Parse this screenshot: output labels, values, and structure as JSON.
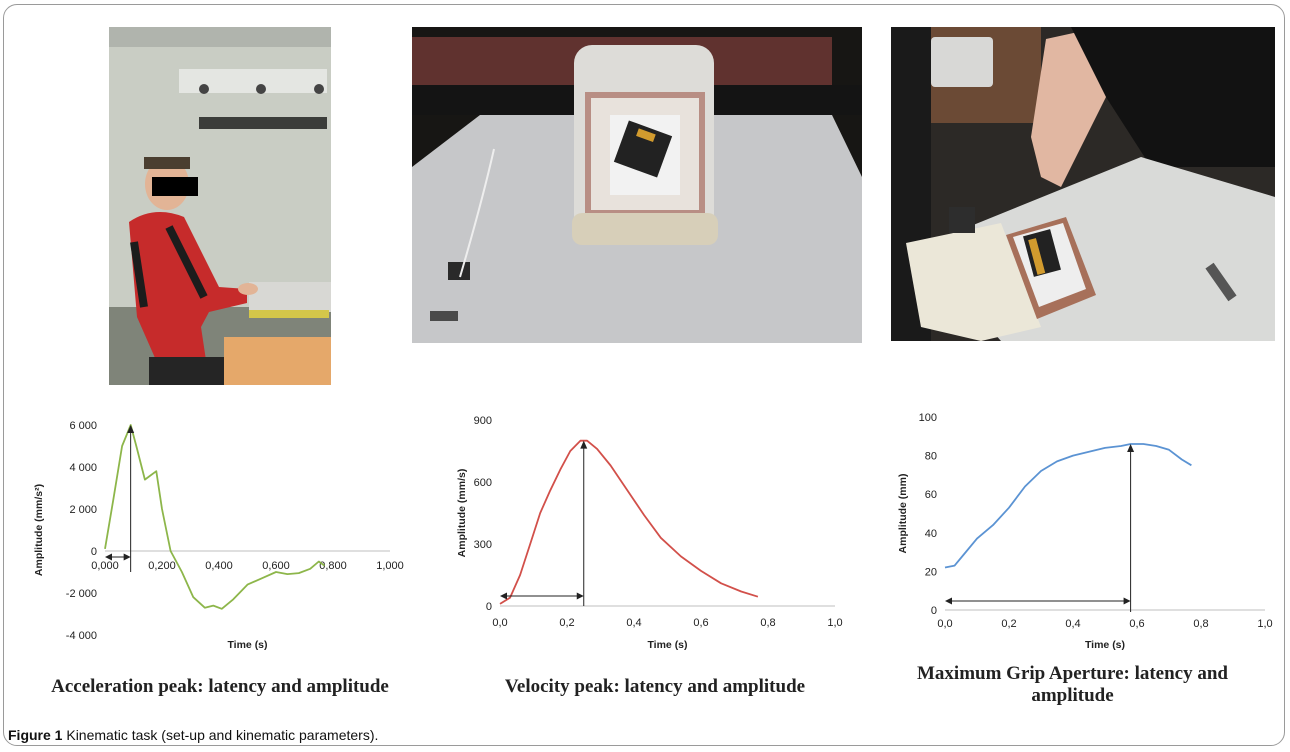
{
  "figure": {
    "label": "Figure 1",
    "caption": "Kinematic task (set-up and kinematic parameters)."
  },
  "photos": [
    {
      "name": "participant-seated-photo"
    },
    {
      "name": "workspace-overhead-photo"
    },
    {
      "name": "grasping-hand-photo"
    }
  ],
  "chart_data": [
    {
      "type": "line",
      "caption": "Acceleration peak: latency and amplitude",
      "xlabel": "Time (s)",
      "ylabel": "Amplitude (mm/s²)",
      "xlim": [
        0,
        1
      ],
      "ylim": [
        -4000,
        6000
      ],
      "x_ticks": [
        "0,000",
        "0,200",
        "0,400",
        "0,600",
        "0,800",
        "1,000"
      ],
      "y_ticks": [
        "6 000",
        "4 000",
        "2 000",
        "0",
        "-2 000",
        "-4 000"
      ],
      "color": "#8db64a",
      "series": [
        {
          "x": [
            0.0,
            0.03,
            0.06,
            0.09,
            0.11,
            0.14,
            0.16,
            0.18,
            0.2,
            0.23,
            0.27,
            0.31,
            0.35,
            0.38,
            0.41,
            0.45,
            0.5,
            0.55,
            0.6,
            0.64,
            0.68,
            0.72,
            0.75,
            0.77
          ],
          "y": [
            100,
            2500,
            5000,
            6000,
            5000,
            3400,
            3600,
            3800,
            2000,
            0,
            -1000,
            -2200,
            -2700,
            -2600,
            -2750,
            -2300,
            -1600,
            -1300,
            -1000,
            -1100,
            -1050,
            -850,
            -500,
            -700
          ]
        }
      ],
      "annotations": {
        "peak": {
          "x": 0.09,
          "y": 6000
        }
      }
    },
    {
      "type": "line",
      "caption": "Velocity peak: latency and amplitude",
      "xlabel": "Time (s)",
      "ylabel": "Amplitude (mm/s)",
      "xlim": [
        0,
        1
      ],
      "ylim": [
        0,
        900
      ],
      "x_ticks": [
        "0,0",
        "0,2",
        "0,4",
        "0,6",
        "0,8",
        "1,0"
      ],
      "y_ticks": [
        "900",
        "600",
        "300",
        "0"
      ],
      "color": "#d2504a",
      "series": [
        {
          "x": [
            0.0,
            0.03,
            0.06,
            0.09,
            0.12,
            0.15,
            0.18,
            0.21,
            0.24,
            0.26,
            0.29,
            0.33,
            0.38,
            0.43,
            0.48,
            0.54,
            0.6,
            0.66,
            0.72,
            0.77
          ],
          "y": [
            10,
            40,
            150,
            300,
            450,
            560,
            660,
            750,
            800,
            800,
            760,
            680,
            560,
            440,
            330,
            240,
            170,
            110,
            70,
            45
          ]
        }
      ],
      "annotations": {
        "peak": {
          "x": 0.25,
          "y": 800
        }
      }
    },
    {
      "type": "line",
      "caption": "Maximum Grip Aperture: latency and amplitude",
      "xlabel": "Time (s)",
      "ylabel": "Amplitude (mm)",
      "xlim": [
        0,
        1
      ],
      "ylim": [
        0,
        100
      ],
      "x_ticks": [
        "0,0",
        "0,2",
        "0,4",
        "0,6",
        "0,8",
        "1,0"
      ],
      "y_ticks": [
        "100",
        "80",
        "60",
        "40",
        "20",
        "0"
      ],
      "color": "#5b93d3",
      "series": [
        {
          "x": [
            0.0,
            0.03,
            0.06,
            0.1,
            0.15,
            0.2,
            0.25,
            0.3,
            0.35,
            0.4,
            0.45,
            0.5,
            0.55,
            0.58,
            0.62,
            0.66,
            0.7,
            0.74,
            0.77
          ],
          "y": [
            22,
            23,
            29,
            37,
            44,
            53,
            64,
            72,
            77,
            80,
            82,
            84,
            85,
            86,
            86,
            85,
            83,
            78,
            75
          ]
        }
      ],
      "annotations": {
        "peak": {
          "x": 0.58,
          "y": 86
        }
      }
    }
  ]
}
